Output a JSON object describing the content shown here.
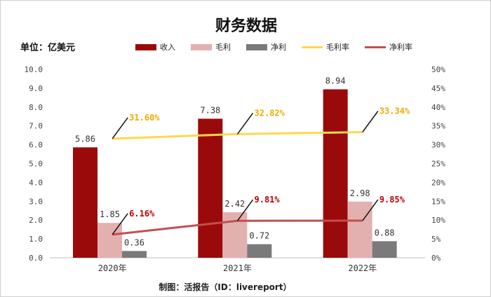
{
  "header": {
    "title": "财务数据",
    "unit": "单位：亿美元",
    "source": "制图：活报告（ID：livereport）"
  },
  "chart_data": {
    "type": "bar",
    "categories": [
      "2020年",
      "2021年",
      "2022年"
    ],
    "series": [
      {
        "name": "收入",
        "kind": "bar",
        "axis": "left",
        "color": "#9b0a0a",
        "values": [
          5.86,
          7.38,
          8.94
        ]
      },
      {
        "name": "毛利",
        "kind": "bar",
        "axis": "left",
        "color": "#e3b0b0",
        "values": [
          1.85,
          2.42,
          2.98
        ]
      },
      {
        "name": "净利",
        "kind": "bar",
        "axis": "left",
        "color": "#7a7a7a",
        "values": [
          0.36,
          0.72,
          0.88
        ]
      },
      {
        "name": "毛利率",
        "kind": "line",
        "axis": "right",
        "color": "#ffd84a",
        "label_color": "#f2a900",
        "values": [
          31.6,
          32.82,
          33.34
        ],
        "labels": [
          "31.60%",
          "32.82%",
          "33.34%"
        ]
      },
      {
        "name": "净利率",
        "kind": "line",
        "axis": "right",
        "color": "#c0504d",
        "label_color": "#c00000",
        "values": [
          6.16,
          9.81,
          9.85
        ],
        "labels": [
          "6.16%",
          "9.81%",
          "9.85%"
        ]
      }
    ],
    "bar_labels": [
      [
        "5.86",
        "7.38",
        "8.94"
      ],
      [
        "1.85",
        "2.42",
        "2.98"
      ],
      [
        "0.36",
        "0.72",
        "0.88"
      ]
    ],
    "y_left": {
      "min": 0,
      "max": 10,
      "ticks": [
        "0.0",
        "1.0",
        "2.0",
        "3.0",
        "4.0",
        "5.0",
        "6.0",
        "7.0",
        "8.0",
        "9.0",
        "10.0"
      ]
    },
    "y_right": {
      "min": 0,
      "max": 50,
      "ticks": [
        "0%",
        "5%",
        "10%",
        "15%",
        "20%",
        "25%",
        "30%",
        "35%",
        "40%",
        "45%",
        "50%"
      ]
    },
    "grid": false,
    "legend_position": "top"
  }
}
